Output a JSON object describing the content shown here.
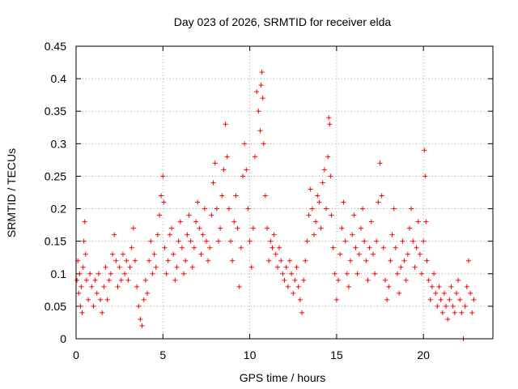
{
  "chart_data": {
    "type": "scatter",
    "title": "Day 023 of 2026, SRMTID for receiver elda",
    "xlabel": "GPS time / hours",
    "ylabel": "SRMTID / TECUs",
    "xlim": [
      0,
      24
    ],
    "ylim": [
      0,
      0.45
    ],
    "xticks": [
      0,
      5,
      10,
      15,
      20
    ],
    "xtick_labels": [
      "0",
      "5",
      "10",
      "15",
      "20"
    ],
    "yticks": [
      0,
      0.05,
      0.1,
      0.15,
      0.2,
      0.25,
      0.3,
      0.35,
      0.4,
      0.45
    ],
    "ytick_labels": [
      "0",
      "0.05",
      "0.1",
      "0.15",
      "0.2",
      "0.25",
      "0.3",
      "0.35",
      "0.4",
      "0.45"
    ],
    "grid": true,
    "marker": "+",
    "marker_color": "#ff0000",
    "series": [
      {
        "name": "SRMTID",
        "points": [
          [
            0.05,
            0.09
          ],
          [
            0.1,
            0.12
          ],
          [
            0.15,
            0.07
          ],
          [
            0.2,
            0.1
          ],
          [
            0.25,
            0.05
          ],
          [
            0.3,
            0.08
          ],
          [
            0.35,
            0.04
          ],
          [
            0.4,
            0.11
          ],
          [
            0.45,
            0.15
          ],
          [
            0.5,
            0.18
          ],
          [
            0.55,
            0.13
          ],
          [
            0.6,
            0.09
          ],
          [
            0.7,
            0.06
          ],
          [
            0.8,
            0.1
          ],
          [
            0.9,
            0.08
          ],
          [
            1.0,
            0.05
          ],
          [
            1.1,
            0.09
          ],
          [
            1.2,
            0.07
          ],
          [
            1.3,
            0.1
          ],
          [
            1.4,
            0.06
          ],
          [
            1.5,
            0.04
          ],
          [
            1.6,
            0.08
          ],
          [
            1.7,
            0.11
          ],
          [
            1.8,
            0.06
          ],
          [
            1.9,
            0.09
          ],
          [
            2.0,
            0.1
          ],
          [
            2.1,
            0.13
          ],
          [
            2.2,
            0.16
          ],
          [
            2.3,
            0.12
          ],
          [
            2.4,
            0.08
          ],
          [
            2.5,
            0.11
          ],
          [
            2.6,
            0.09
          ],
          [
            2.7,
            0.13
          ],
          [
            2.8,
            0.1
          ],
          [
            2.9,
            0.12
          ],
          [
            3.0,
            0.09
          ],
          [
            3.1,
            0.11
          ],
          [
            3.2,
            0.14
          ],
          [
            3.3,
            0.17
          ],
          [
            3.4,
            0.12
          ],
          [
            3.5,
            0.08
          ],
          [
            3.6,
            0.05
          ],
          [
            3.7,
            0.03
          ],
          [
            3.8,
            0.02
          ],
          [
            3.9,
            0.06
          ],
          [
            4.0,
            0.09
          ],
          [
            4.1,
            0.07
          ],
          [
            4.2,
            0.12
          ],
          [
            4.3,
            0.15
          ],
          [
            4.4,
            0.1
          ],
          [
            4.5,
            0.13
          ],
          [
            4.6,
            0.11
          ],
          [
            4.7,
            0.16
          ],
          [
            4.8,
            0.19
          ],
          [
            4.9,
            0.22
          ],
          [
            5.0,
            0.25
          ],
          [
            5.05,
            0.21
          ],
          [
            5.1,
            0.14
          ],
          [
            5.2,
            0.1
          ],
          [
            5.3,
            0.12
          ],
          [
            5.4,
            0.16
          ],
          [
            5.5,
            0.17
          ],
          [
            5.6,
            0.13
          ],
          [
            5.7,
            0.09
          ],
          [
            5.8,
            0.11
          ],
          [
            5.9,
            0.15
          ],
          [
            6.0,
            0.18
          ],
          [
            6.1,
            0.14
          ],
          [
            6.2,
            0.1
          ],
          [
            6.3,
            0.12
          ],
          [
            6.4,
            0.16
          ],
          [
            6.5,
            0.19
          ],
          [
            6.6,
            0.15
          ],
          [
            6.7,
            0.11
          ],
          [
            6.8,
            0.14
          ],
          [
            6.9,
            0.18
          ],
          [
            7.0,
            0.21
          ],
          [
            7.1,
            0.17
          ],
          [
            7.2,
            0.13
          ],
          [
            7.3,
            0.16
          ],
          [
            7.4,
            0.2
          ],
          [
            7.5,
            0.15
          ],
          [
            7.6,
            0.12
          ],
          [
            7.7,
            0.14
          ],
          [
            7.8,
            0.19
          ],
          [
            7.9,
            0.24
          ],
          [
            8.0,
            0.27
          ],
          [
            8.1,
            0.2
          ],
          [
            8.2,
            0.15
          ],
          [
            8.3,
            0.17
          ],
          [
            8.4,
            0.22
          ],
          [
            8.5,
            0.26
          ],
          [
            8.6,
            0.33
          ],
          [
            8.7,
            0.28
          ],
          [
            8.8,
            0.2
          ],
          [
            8.9,
            0.15
          ],
          [
            9.0,
            0.12
          ],
          [
            9.1,
            0.18
          ],
          [
            9.2,
            0.22
          ],
          [
            9.3,
            0.17
          ],
          [
            9.4,
            0.08
          ],
          [
            9.5,
            0.14
          ],
          [
            9.6,
            0.25
          ],
          [
            9.7,
            0.3
          ],
          [
            9.8,
            0.26
          ],
          [
            9.9,
            0.2
          ],
          [
            10.0,
            0.15
          ],
          [
            10.1,
            0.11
          ],
          [
            10.2,
            0.17
          ],
          [
            10.3,
            0.28
          ],
          [
            10.4,
            0.38
          ],
          [
            10.5,
            0.35
          ],
          [
            10.6,
            0.32
          ],
          [
            10.65,
            0.39
          ],
          [
            10.7,
            0.41
          ],
          [
            10.75,
            0.37
          ],
          [
            10.8,
            0.3
          ],
          [
            10.9,
            0.22
          ],
          [
            11.0,
            0.17
          ],
          [
            11.1,
            0.12
          ],
          [
            11.2,
            0.15
          ],
          [
            11.3,
            0.14
          ],
          [
            11.4,
            0.16
          ],
          [
            11.5,
            0.13
          ],
          [
            11.6,
            0.11
          ],
          [
            11.7,
            0.14
          ],
          [
            11.8,
            0.12
          ],
          [
            11.9,
            0.1
          ],
          [
            12.0,
            0.09
          ],
          [
            12.1,
            0.11
          ],
          [
            12.2,
            0.08
          ],
          [
            12.3,
            0.12
          ],
          [
            12.4,
            0.1
          ],
          [
            12.5,
            0.07
          ],
          [
            12.6,
            0.09
          ],
          [
            12.7,
            0.11
          ],
          [
            12.8,
            0.08
          ],
          [
            12.9,
            0.06
          ],
          [
            13.0,
            0.04
          ],
          [
            13.1,
            0.09
          ],
          [
            13.2,
            0.12
          ],
          [
            13.3,
            0.15
          ],
          [
            13.4,
            0.19
          ],
          [
            13.5,
            0.23
          ],
          [
            13.6,
            0.2
          ],
          [
            13.7,
            0.16
          ],
          [
            13.8,
            0.18
          ],
          [
            13.9,
            0.22
          ],
          [
            14.0,
            0.21
          ],
          [
            14.1,
            0.17
          ],
          [
            14.2,
            0.24
          ],
          [
            14.3,
            0.26
          ],
          [
            14.4,
            0.2
          ],
          [
            14.5,
            0.28
          ],
          [
            14.55,
            0.34
          ],
          [
            14.6,
            0.33
          ],
          [
            14.65,
            0.25
          ],
          [
            14.7,
            0.19
          ],
          [
            14.8,
            0.14
          ],
          [
            14.9,
            0.1
          ],
          [
            15.0,
            0.06
          ],
          [
            15.1,
            0.09
          ],
          [
            15.2,
            0.13
          ],
          [
            15.3,
            0.17
          ],
          [
            15.4,
            0.21
          ],
          [
            15.5,
            0.15
          ],
          [
            15.6,
            0.1
          ],
          [
            15.7,
            0.08
          ],
          [
            15.8,
            0.12
          ],
          [
            15.9,
            0.16
          ],
          [
            16.0,
            0.19
          ],
          [
            16.1,
            0.14
          ],
          [
            16.2,
            0.1
          ],
          [
            16.3,
            0.13
          ],
          [
            16.4,
            0.17
          ],
          [
            16.5,
            0.2
          ],
          [
            16.6,
            0.15
          ],
          [
            16.7,
            0.12
          ],
          [
            16.8,
            0.09
          ],
          [
            16.9,
            0.14
          ],
          [
            17.0,
            0.18
          ],
          [
            17.1,
            0.13
          ],
          [
            17.2,
            0.1
          ],
          [
            17.3,
            0.15
          ],
          [
            17.4,
            0.21
          ],
          [
            17.5,
            0.27
          ],
          [
            17.6,
            0.22
          ],
          [
            17.7,
            0.14
          ],
          [
            17.8,
            0.09
          ],
          [
            17.9,
            0.06
          ],
          [
            18.0,
            0.08
          ],
          [
            18.1,
            0.12
          ],
          [
            18.2,
            0.16
          ],
          [
            18.3,
            0.2
          ],
          [
            18.4,
            0.14
          ],
          [
            18.5,
            0.1
          ],
          [
            18.6,
            0.07
          ],
          [
            18.7,
            0.11
          ],
          [
            18.8,
            0.15
          ],
          [
            18.9,
            0.12
          ],
          [
            19.0,
            0.09
          ],
          [
            19.1,
            0.13
          ],
          [
            19.2,
            0.17
          ],
          [
            19.3,
            0.2
          ],
          [
            19.4,
            0.15
          ],
          [
            19.5,
            0.11
          ],
          [
            19.6,
            0.14
          ],
          [
            19.7,
            0.18
          ],
          [
            19.8,
            0.13
          ],
          [
            19.9,
            0.1
          ],
          [
            20.0,
            0.15
          ],
          [
            20.05,
            0.29
          ],
          [
            20.1,
            0.25
          ],
          [
            20.15,
            0.18
          ],
          [
            20.2,
            0.12
          ],
          [
            20.3,
            0.09
          ],
          [
            20.4,
            0.06
          ],
          [
            20.5,
            0.08
          ],
          [
            20.6,
            0.1
          ],
          [
            20.7,
            0.07
          ],
          [
            20.8,
            0.05
          ],
          [
            20.9,
            0.08
          ],
          [
            21.0,
            0.06
          ],
          [
            21.1,
            0.04
          ],
          [
            21.2,
            0.07
          ],
          [
            21.3,
            0.05
          ],
          [
            21.4,
            0.03
          ],
          [
            21.5,
            0.06
          ],
          [
            21.6,
            0.08
          ],
          [
            21.7,
            0.05
          ],
          [
            21.8,
            0.04
          ],
          [
            21.9,
            0.07
          ],
          [
            22.0,
            0.09
          ],
          [
            22.1,
            0.06
          ],
          [
            22.2,
            0.04
          ],
          [
            22.3,
            0.0
          ],
          [
            22.4,
            0.05
          ],
          [
            22.5,
            0.08
          ],
          [
            22.6,
            0.12
          ],
          [
            22.7,
            0.07
          ],
          [
            22.8,
            0.04
          ],
          [
            22.9,
            0.06
          ]
        ]
      }
    ]
  }
}
